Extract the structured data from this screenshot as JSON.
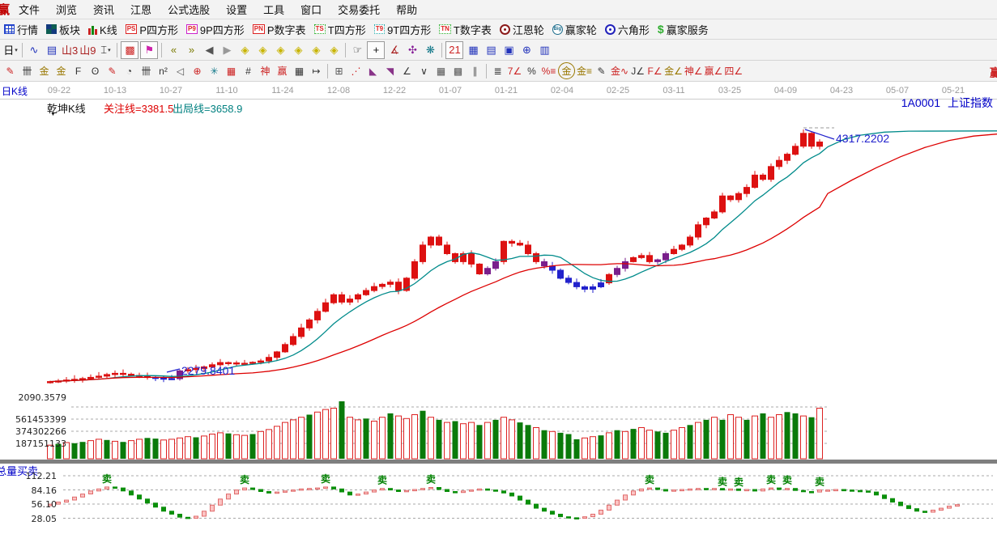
{
  "menu_bar": {
    "logo": "赢",
    "items": [
      "文件",
      "浏览",
      "资讯",
      "江恩",
      "公式选股",
      "设置",
      "工具",
      "窗口",
      "交易委托",
      "帮助"
    ]
  },
  "toolbar_main": {
    "items": [
      {
        "name": "quotes",
        "label": "行情",
        "icon": {
          "type": "table"
        }
      },
      {
        "name": "sectors",
        "label": "板块",
        "icon": {
          "type": "blocks"
        }
      },
      {
        "name": "kline",
        "label": "K线",
        "icon": {
          "type": "candles"
        }
      },
      {
        "name": "p-square",
        "label": "P四方形",
        "icon": {
          "type": "badge",
          "text": "PS",
          "border": "#dd2222",
          "color": "#dd2222",
          "dotted": false
        }
      },
      {
        "name": "p9-square",
        "label": "9P四方形",
        "icon": {
          "type": "badge",
          "text": "P9",
          "border": "#cc22cc",
          "color": "#dd2222",
          "dotted": false
        }
      },
      {
        "name": "p-number-table",
        "label": "P数字表",
        "icon": {
          "type": "badge",
          "text": "PN",
          "border": "#dd2222",
          "color": "#dd2222",
          "dotted": false
        }
      },
      {
        "name": "t-square",
        "label": "T四方形",
        "icon": {
          "type": "badge",
          "text": "TS",
          "border": "#22aa22",
          "color": "#dd2222",
          "dotted": true
        }
      },
      {
        "name": "t9-square",
        "label": "9T四方形",
        "icon": {
          "type": "badge",
          "text": "T9",
          "border": "#22aaaa",
          "color": "#dd2222",
          "dotted": true
        }
      },
      {
        "name": "t-number-table",
        "label": "T数字表",
        "icon": {
          "type": "badge",
          "text": "TN",
          "border": "#22aa22",
          "color": "#dd2222",
          "dotted": true
        }
      },
      {
        "name": "gann-wheel",
        "label": "江恩轮",
        "icon": {
          "type": "wheel",
          "color": "#8b1a1a"
        }
      },
      {
        "name": "winner-wheel",
        "label": "赢家轮",
        "icon": {
          "type": "wheel-text",
          "text": "Big",
          "color": "#1a6b8b"
        }
      },
      {
        "name": "hexagon",
        "label": "六角形",
        "icon": {
          "type": "wheel",
          "color": "#2222bb"
        }
      },
      {
        "name": "winner-service",
        "label": "赢家服务",
        "icon": {
          "type": "char",
          "ch": "$",
          "color": "#2fae2f"
        }
      }
    ]
  },
  "toolbar_tools": {
    "items": [
      {
        "name": "period-day-button",
        "glyph": "日",
        "caret": true,
        "color": "#111111"
      },
      {
        "sep": true
      },
      {
        "name": "chart-overlay-button",
        "glyph": "∿",
        "color": "#2233bb"
      },
      {
        "name": "info-panel-button",
        "glyph": "▤",
        "color": "#2233bb"
      },
      {
        "name": "bars-3-button",
        "glyph": "山3",
        "color": "#aa2222"
      },
      {
        "name": "bars-9-button",
        "glyph": "山9",
        "color": "#aa2222"
      },
      {
        "name": "candle-style-button",
        "glyph": "⌶",
        "caret": true,
        "color": "#111111"
      },
      {
        "sep": true
      },
      {
        "name": "pattern-grid-button",
        "glyph": "▩",
        "color": "#cc2222",
        "boxed": true
      },
      {
        "name": "colored-chart-button",
        "glyph": "⚑",
        "color": "#cc22aa",
        "boxed": true
      },
      {
        "sep": true
      },
      {
        "name": "first-bar-button",
        "glyph": "«",
        "color": "#7a7a00"
      },
      {
        "name": "last-bar-button",
        "glyph": "»",
        "color": "#7a7a00"
      },
      {
        "name": "prev-bar-button",
        "glyph": "◀",
        "color": "#555555"
      },
      {
        "name": "next-bar-button",
        "glyph": "▶",
        "color": "#999999"
      },
      {
        "name": "diamond-nav-left-button",
        "glyph": "◈",
        "color": "#c8b400"
      },
      {
        "name": "diamond-nav-right-button",
        "glyph": "◈",
        "color": "#c8b400"
      },
      {
        "name": "diamond-nav-up-button",
        "glyph": "◈",
        "color": "#c8b400"
      },
      {
        "name": "diamond-nav-down-button",
        "glyph": "◈",
        "color": "#c8b400"
      },
      {
        "name": "diamond-expand-button",
        "glyph": "◈",
        "color": "#c8b400"
      },
      {
        "name": "diamond-shrink-button",
        "glyph": "◈",
        "color": "#c8b400"
      },
      {
        "sep": true
      },
      {
        "name": "hand-tool-button",
        "glyph": "☞",
        "color": "#333333"
      },
      {
        "name": "crosshair-tool-button",
        "glyph": "+",
        "color": "#111111",
        "boxed": true
      },
      {
        "name": "angle-measure-button",
        "glyph": "∡",
        "color": "#aa2222"
      },
      {
        "name": "gann-shape-button",
        "glyph": "✣",
        "color": "#882299"
      },
      {
        "name": "smart-analysis-button",
        "glyph": "❋",
        "color": "#117788"
      },
      {
        "sep": true
      },
      {
        "name": "calendar-button",
        "glyph": "21",
        "color": "#cc2222",
        "boxed": true
      },
      {
        "name": "calculator-button",
        "glyph": "▦",
        "color": "#2233bb"
      },
      {
        "name": "notepad-button",
        "glyph": "▤",
        "color": "#2233bb"
      },
      {
        "name": "save-image-button",
        "glyph": "▣",
        "color": "#2233bb"
      },
      {
        "name": "web-sync-button",
        "glyph": "⊕",
        "color": "#2233bb"
      },
      {
        "name": "print-button",
        "glyph": "▥",
        "color": "#2233bb"
      }
    ]
  },
  "toolbar_draw": {
    "edge_fragment": "赢",
    "items": [
      {
        "name": "brush-tool",
        "glyph": "✎",
        "color": "#cc2222"
      },
      {
        "name": "grid-count-tool",
        "glyph": "卌",
        "color": "#333333"
      },
      {
        "name": "gold-ratio-tool",
        "glyph": "金",
        "color": "#997700"
      },
      {
        "name": "gold-ratio2-tool",
        "glyph": "金",
        "color": "#997700"
      },
      {
        "name": "fibo-grid-tool",
        "glyph": "F",
        "color": "#333333"
      },
      {
        "name": "spiral-tool",
        "glyph": "ʘ",
        "color": "#333333"
      },
      {
        "name": "mark-pen-tool",
        "glyph": "✎",
        "color": "#cc2222"
      },
      {
        "name": "cycle-tool",
        "glyph": "◔",
        "color": "#333333"
      },
      {
        "name": "tally-tool",
        "glyph": "卌",
        "color": "#333333"
      },
      {
        "name": "square-n2-tool",
        "glyph": "n²",
        "color": "#333333"
      },
      {
        "name": "triangle-tool",
        "glyph": "◁",
        "color": "#555555"
      },
      {
        "name": "target-circle-tool",
        "glyph": "⊕",
        "color": "#cc2222"
      },
      {
        "name": "star-burst-tool",
        "glyph": "✳",
        "color": "#117788"
      },
      {
        "name": "red-grid-tool",
        "glyph": "▦",
        "color": "#cc2222"
      },
      {
        "name": "mini-kline-tool",
        "glyph": "#",
        "color": "#333333"
      },
      {
        "name": "shen-grid-tool",
        "glyph": "神",
        "color": "#cc2222"
      },
      {
        "name": "ying-grid-tool",
        "glyph": "赢",
        "color": "#cc2222"
      },
      {
        "name": "numbered-grid-tool",
        "glyph": "▦",
        "color": "#333333"
      },
      {
        "name": "measure-arrow-tool",
        "glyph": "↦",
        "color": "#333333"
      },
      {
        "sep": true
      },
      {
        "name": "box-extend-tool",
        "glyph": "⊞",
        "color": "#555555"
      },
      {
        "name": "fan-lines-tool",
        "glyph": "⋰",
        "color": "#cc2222"
      },
      {
        "name": "fan-box-tool",
        "glyph": "◣",
        "color": "#883388"
      },
      {
        "name": "fan-box2-tool",
        "glyph": "◥",
        "color": "#883388"
      },
      {
        "name": "angle-lines-tool",
        "glyph": "∠",
        "color": "#333333"
      },
      {
        "name": "v-lines-tool",
        "glyph": "∨",
        "color": "#333333"
      },
      {
        "name": "dense-grid-tool",
        "glyph": "▦",
        "color": "#555555"
      },
      {
        "name": "dense-grid2-tool",
        "glyph": "▩",
        "color": "#555555"
      },
      {
        "name": "parallel-lines-tool",
        "glyph": "∥",
        "color": "#555555"
      },
      {
        "sep": true
      },
      {
        "name": "level-lines-tool",
        "glyph": "≣",
        "color": "#333333"
      },
      {
        "name": "seven-angle-tool",
        "glyph": "7∠",
        "color": "#cc2222"
      },
      {
        "name": "percent-tool",
        "glyph": "%",
        "color": "#333333"
      },
      {
        "name": "percent-lines-tool",
        "glyph": "%≡",
        "color": "#cc2222"
      },
      {
        "name": "gold-circle-tool",
        "glyph": "金",
        "color": "#997700",
        "round": true
      },
      {
        "name": "gold-lines-tool",
        "glyph": "金≡",
        "color": "#997700"
      },
      {
        "name": "ruler-pen-tool",
        "glyph": "✎",
        "color": "#333333"
      },
      {
        "name": "gold-wave-tool",
        "glyph": "金∿",
        "color": "#cc2222"
      },
      {
        "name": "j-angle-tool",
        "glyph": "J∠",
        "color": "#333333"
      },
      {
        "name": "f-angle-tool",
        "glyph": "F∠",
        "color": "#cc2222"
      },
      {
        "name": "gold-angle-tool",
        "glyph": "金∠",
        "color": "#997700"
      },
      {
        "name": "shen-angle-tool",
        "glyph": "神∠",
        "color": "#cc2222"
      },
      {
        "name": "ying-angle-tool",
        "glyph": "赢∠",
        "color": "#cc2222"
      },
      {
        "name": "si-angle-tool",
        "glyph": "四∠",
        "color": "#cc2222"
      }
    ]
  },
  "chart": {
    "panel_title": "日K线",
    "kline_type_label": "乾坤K线",
    "attention_line_label": "关注线=3381.5",
    "exit_line_label": "出局线=3658.9",
    "symbol_code": "1A0001",
    "symbol_name": "上证指数",
    "high_annotation": "4317.2202",
    "low_annotation": "2279.8401",
    "osc_title": "总量买卖",
    "sell_marker": "卖",
    "dates": [
      "09-22",
      "10-13",
      "10-27",
      "11-10",
      "11-24",
      "12-08",
      "12-22",
      "01-07",
      "01-21",
      "02-04",
      "02-25",
      "03-11",
      "03-25",
      "04-09",
      "04-23",
      "05-07",
      "05-21"
    ],
    "volume_axis_labels": [
      "2090.3579",
      "561453399",
      "374302266",
      "187151133"
    ],
    "osc_axis_labels": [
      "112.21",
      "84.16",
      "56.10",
      "28.05"
    ]
  },
  "chart_data": [
    {
      "type": "candlestick",
      "name": "上证指数 日K线 (乾坤K线)",
      "tick_dates": [
        "09-22",
        "10-13",
        "10-27",
        "11-10",
        "11-24",
        "12-08",
        "12-22",
        "01-07",
        "01-21",
        "02-04",
        "02-25",
        "03-11",
        "03-25",
        "04-09",
        "04-23",
        "05-07",
        "05-21"
      ],
      "closes": [
        2258,
        2263,
        2270,
        2276,
        2282,
        2292,
        2302,
        2315,
        2325,
        2318,
        2308,
        2300,
        2292,
        2286,
        2282,
        2281,
        2345,
        2355,
        2365,
        2378,
        2395,
        2413,
        2410,
        2407,
        2406,
        2415,
        2426,
        2455,
        2500,
        2560,
        2625,
        2695,
        2760,
        2830,
        2900,
        2965,
        2905,
        2930,
        2965,
        3000,
        3032,
        3050,
        3068,
        3000,
        3100,
        3235,
        3370,
        3435,
        3370,
        3300,
        3235,
        3300,
        3215,
        3135,
        3180,
        3235,
        3400,
        3385,
        3370,
        3300,
        3235,
        3200,
        3165,
        3100,
        3065,
        3030,
        3010,
        3030,
        3062,
        3130,
        3180,
        3235,
        3268,
        3285,
        3235,
        3250,
        3300,
        3335,
        3370,
        3435,
        3535,
        3590,
        3640,
        3770,
        3740,
        3790,
        3840,
        3940,
        3905,
        4010,
        4060,
        4110,
        4175,
        4280,
        4175,
        4210
      ],
      "candle_color_runs": [
        "rrrrrrrrrrrrr",
        "bbb",
        "p",
        "rrrrrrrrrr",
        "rrrrrrrrrr",
        "rrrrrrrrrr",
        "rrrrrrr",
        "pp",
        "rrrrr",
        "p",
        "bbbbbbb",
        "r",
        "pp",
        "rrr",
        "pp",
        "rrrrrrrrrr",
        "rrrrrrrrr"
      ],
      "color_legend": {
        "r": "up-red",
        "b": "down-blue",
        "p": "qiankun-purple"
      },
      "ylim": [
        2090.3579,
        4443
      ],
      "ma_short_window": 8,
      "ma_long_window": 26,
      "ma_short_projection": [
        [
          96,
          4170
        ],
        [
          98,
          4230
        ],
        [
          100,
          4265
        ],
        [
          103,
          4290
        ],
        [
          106,
          4298
        ],
        [
          117,
          4300
        ]
      ],
      "ma_long_projection": [
        [
          96,
          3790
        ],
        [
          99,
          3900
        ],
        [
          102,
          4000
        ],
        [
          105,
          4090
        ],
        [
          108,
          4165
        ],
        [
          111,
          4222
        ],
        [
          114,
          4258
        ],
        [
          117,
          4275
        ]
      ],
      "annotations": [
        {
          "text": "4317.2202",
          "index": 93,
          "value": 4317.2202,
          "kind": "high"
        },
        {
          "text": "2279.8401",
          "index": 15,
          "value": 2279.8401,
          "kind": "low"
        }
      ],
      "reference_values": {
        "attention_line": 3381.5,
        "exit_line": 3658.9
      }
    },
    {
      "type": "bar",
      "name": "volume",
      "values_millions": [
        210,
        230,
        250,
        240,
        260,
        280,
        300,
        290,
        270,
        260,
        280,
        300,
        320,
        310,
        290,
        300,
        320,
        340,
        330,
        350,
        380,
        400,
        390,
        370,
        360,
        380,
        420,
        450,
        500,
        560,
        600,
        640,
        680,
        720,
        760,
        780,
        885,
        640,
        600,
        620,
        580,
        640,
        700,
        660,
        620,
        680,
        740,
        640,
        600,
        560,
        580,
        540,
        560,
        520,
        560,
        600,
        640,
        600,
        560,
        520,
        480,
        440,
        420,
        400,
        380,
        300,
        320,
        340,
        360,
        400,
        440,
        420,
        460,
        480,
        440,
        420,
        400,
        440,
        480,
        520,
        560,
        600,
        640,
        600,
        680,
        640,
        600,
        660,
        700,
        640,
        680,
        720,
        700,
        660,
        640,
        780
      ],
      "bar_colors_runs": [
        "rgrggrrgrgrrggrr",
        "rrgrrrgrrgrr",
        "rrrrgrrrg",
        "rrgrrgrrrgr",
        "grgrrgrgrrggr",
        "grgggrrgrg",
        "rgrrggrrg",
        "rgrgrrgrgrrggrgr"
      ],
      "color_legend": {
        "r": "up-hollow-red",
        "g": "down-solid-green"
      },
      "axis_values": [
        561453399,
        374302266,
        187151133
      ],
      "price_axis_bottom": 2090.3579
    },
    {
      "type": "candlestick",
      "name": "总量买卖",
      "values": [
        56,
        60,
        64,
        70,
        76,
        82,
        86,
        90,
        88,
        82,
        74,
        66,
        58,
        50,
        42,
        36,
        30,
        28,
        32,
        42,
        54,
        66,
        76,
        84,
        88,
        85,
        81,
        78,
        80,
        82,
        84,
        86,
        87,
        88,
        90,
        86,
        80,
        74,
        76,
        80,
        84,
        87,
        84,
        81,
        83,
        85,
        87,
        89,
        85,
        81,
        79,
        82,
        84,
        86,
        84,
        82,
        78,
        72,
        64,
        56,
        48,
        42,
        36,
        31,
        29,
        28,
        31,
        36,
        44,
        54,
        64,
        74,
        82,
        86,
        88,
        85,
        82,
        84,
        85,
        86,
        87,
        85,
        87,
        84,
        86,
        83,
        85,
        82,
        86,
        88,
        85,
        87,
        83,
        81,
        80,
        84,
        84,
        85,
        84,
        83,
        82,
        80,
        74,
        67,
        60,
        53,
        47,
        42,
        40,
        44,
        48,
        52,
        55
      ],
      "axis_values": [
        112.21,
        84.16,
        56.1,
        28.05
      ],
      "sell_marker_indices": [
        7,
        24,
        34,
        41,
        47,
        74,
        83,
        85,
        89,
        91,
        95
      ],
      "sell_marker_text": "卖"
    }
  ],
  "colors": {
    "up_red": "#dd1111",
    "down_blue": "#2222cc",
    "neutral_purple": "#7a1f8c",
    "ma_short": "#008b8b",
    "ma_long": "#dd0000",
    "volume_up": "#dd2222",
    "volume_down": "#0a7a0a",
    "osc_up_pink": "#e06a6a",
    "osc_up_fill": "#fbc4c4",
    "osc_down_green": "#0a8f0a",
    "sell_green": "#008000",
    "annotation_blue": "#2020cc",
    "link_blue": "#0000c8"
  }
}
